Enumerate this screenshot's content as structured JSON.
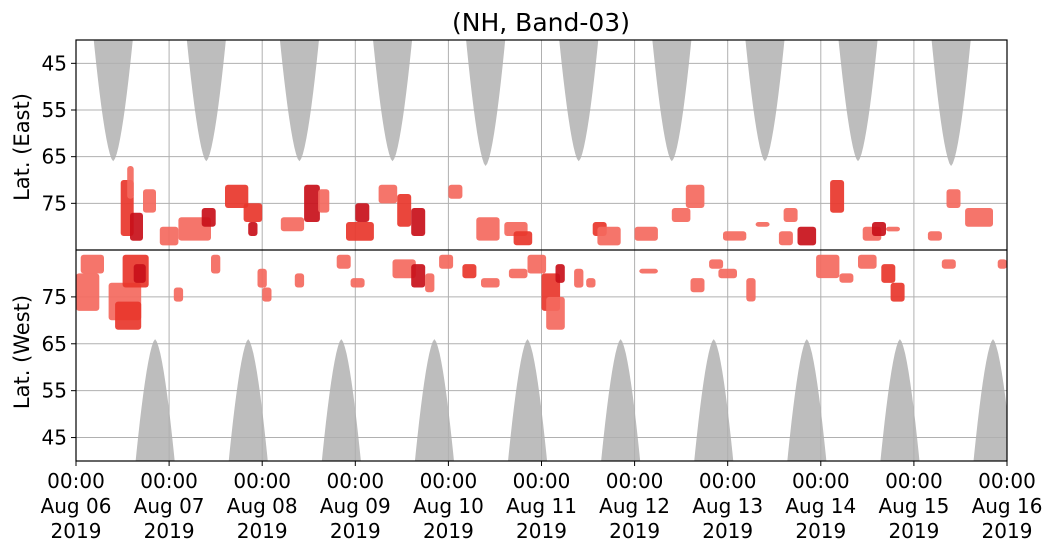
{
  "chart_data": {
    "type": "heatmap",
    "title": "(NH, Band-03)",
    "ylabel_east": "Lat. (East)",
    "ylabel_west": "Lat. (West)",
    "y_ticks_east": [
      45,
      55,
      65,
      75
    ],
    "y_ticks_west": [
      75,
      65,
      55,
      45
    ],
    "y_range_east": [
      85,
      40
    ],
    "y_range_west": [
      85,
      40
    ],
    "x_range_days": [
      0,
      10
    ],
    "x_ticks": [
      {
        "time": "00:00",
        "date": "Aug 06",
        "year": "2019"
      },
      {
        "time": "00:00",
        "date": "Aug 07",
        "year": "2019"
      },
      {
        "time": "00:00",
        "date": "Aug 08",
        "year": "2019"
      },
      {
        "time": "00:00",
        "date": "Aug 09",
        "year": "2019"
      },
      {
        "time": "00:00",
        "date": "Aug 10",
        "year": "2019"
      },
      {
        "time": "00:00",
        "date": "Aug 11",
        "year": "2019"
      },
      {
        "time": "00:00",
        "date": "Aug 12",
        "year": "2019"
      },
      {
        "time": "00:00",
        "date": "Aug 13",
        "year": "2019"
      },
      {
        "time": "00:00",
        "date": "Aug 14",
        "year": "2019"
      },
      {
        "time": "00:00",
        "date": "Aug 15",
        "year": "2019"
      },
      {
        "time": "00:00",
        "date": "Aug 16",
        "year": "2019"
      }
    ],
    "grid": true,
    "colors": {
      "coverage": "#bdbdbd",
      "low": "#f4695e",
      "mid": "#e8362b",
      "high": "#c8101a",
      "divider": "#000000"
    },
    "coverage_gaps": {
      "east": [
        {
          "day": 0.4,
          "half_width_days": 0.22,
          "min_lat": 66
        },
        {
          "day": 1.4,
          "half_width_days": 0.22,
          "min_lat": 66
        },
        {
          "day": 2.4,
          "half_width_days": 0.22,
          "min_lat": 66
        },
        {
          "day": 3.4,
          "half_width_days": 0.22,
          "min_lat": 66
        },
        {
          "day": 4.4,
          "half_width_days": 0.22,
          "min_lat": 67
        },
        {
          "day": 5.4,
          "half_width_days": 0.22,
          "min_lat": 66
        },
        {
          "day": 6.4,
          "half_width_days": 0.22,
          "min_lat": 66
        },
        {
          "day": 7.4,
          "half_width_days": 0.22,
          "min_lat": 66
        },
        {
          "day": 8.4,
          "half_width_days": 0.22,
          "min_lat": 66
        },
        {
          "day": 9.4,
          "half_width_days": 0.22,
          "min_lat": 67
        }
      ],
      "west": [
        {
          "day": 0.85,
          "half_width_days": 0.22,
          "min_lat": 66
        },
        {
          "day": 1.85,
          "half_width_days": 0.22,
          "min_lat": 66
        },
        {
          "day": 2.85,
          "half_width_days": 0.22,
          "min_lat": 66
        },
        {
          "day": 3.85,
          "half_width_days": 0.22,
          "min_lat": 66
        },
        {
          "day": 4.85,
          "half_width_days": 0.22,
          "min_lat": 66
        },
        {
          "day": 5.85,
          "half_width_days": 0.22,
          "min_lat": 66
        },
        {
          "day": 6.85,
          "half_width_days": 0.22,
          "min_lat": 66
        },
        {
          "day": 7.85,
          "half_width_days": 0.22,
          "min_lat": 66
        },
        {
          "day": 8.85,
          "half_width_days": 0.22,
          "min_lat": 66
        },
        {
          "day": 9.85,
          "half_width_days": 0.22,
          "min_lat": 66
        }
      ]
    },
    "detections": {
      "east": [
        {
          "x0": 0.48,
          "x1": 0.62,
          "y0": 82,
          "y1": 70,
          "level": "mid"
        },
        {
          "x0": 0.58,
          "x1": 0.72,
          "y0": 83,
          "y1": 77,
          "level": "high"
        },
        {
          "x0": 0.55,
          "x1": 0.62,
          "y0": 74,
          "y1": 67,
          "level": "low"
        },
        {
          "x0": 0.72,
          "x1": 0.86,
          "y0": 77,
          "y1": 72,
          "level": "low"
        },
        {
          "x0": 0.9,
          "x1": 1.1,
          "y0": 84,
          "y1": 80,
          "level": "low"
        },
        {
          "x0": 1.1,
          "x1": 1.45,
          "y0": 83,
          "y1": 78,
          "level": "low"
        },
        {
          "x0": 1.35,
          "x1": 1.5,
          "y0": 80,
          "y1": 76,
          "level": "high"
        },
        {
          "x0": 1.6,
          "x1": 1.85,
          "y0": 76,
          "y1": 71,
          "level": "mid"
        },
        {
          "x0": 1.8,
          "x1": 2.0,
          "y0": 79,
          "y1": 75,
          "level": "mid"
        },
        {
          "x0": 1.85,
          "x1": 1.95,
          "y0": 82,
          "y1": 79,
          "level": "high"
        },
        {
          "x0": 2.2,
          "x1": 2.45,
          "y0": 81,
          "y1": 78,
          "level": "low"
        },
        {
          "x0": 2.45,
          "x1": 2.62,
          "y0": 79,
          "y1": 71,
          "level": "high"
        },
        {
          "x0": 2.6,
          "x1": 2.72,
          "y0": 77,
          "y1": 72,
          "level": "low"
        },
        {
          "x0": 2.9,
          "x1": 3.2,
          "y0": 83,
          "y1": 79,
          "level": "mid"
        },
        {
          "x0": 3.0,
          "x1": 3.15,
          "y0": 79,
          "y1": 75,
          "level": "high"
        },
        {
          "x0": 3.25,
          "x1": 3.45,
          "y0": 75,
          "y1": 71,
          "level": "low"
        },
        {
          "x0": 3.45,
          "x1": 3.6,
          "y0": 80,
          "y1": 73,
          "level": "mid"
        },
        {
          "x0": 3.6,
          "x1": 3.75,
          "y0": 82,
          "y1": 76,
          "level": "high"
        },
        {
          "x0": 4.0,
          "x1": 4.15,
          "y0": 74,
          "y1": 71,
          "level": "low"
        },
        {
          "x0": 4.3,
          "x1": 4.55,
          "y0": 83,
          "y1": 78,
          "level": "low"
        },
        {
          "x0": 4.6,
          "x1": 4.85,
          "y0": 82,
          "y1": 79,
          "level": "low"
        },
        {
          "x0": 4.7,
          "x1": 4.9,
          "y0": 84,
          "y1": 81,
          "level": "mid"
        },
        {
          "x0": 5.55,
          "x1": 5.7,
          "y0": 82,
          "y1": 79,
          "level": "mid"
        },
        {
          "x0": 5.6,
          "x1": 5.85,
          "y0": 84,
          "y1": 80,
          "level": "low"
        },
        {
          "x0": 6.0,
          "x1": 6.25,
          "y0": 83,
          "y1": 80,
          "level": "low"
        },
        {
          "x0": 6.4,
          "x1": 6.6,
          "y0": 79,
          "y1": 76,
          "level": "low"
        },
        {
          "x0": 6.55,
          "x1": 6.75,
          "y0": 76,
          "y1": 71,
          "level": "low"
        },
        {
          "x0": 6.95,
          "x1": 7.2,
          "y0": 83,
          "y1": 81,
          "level": "low"
        },
        {
          "x0": 7.3,
          "x1": 7.45,
          "y0": 80,
          "y1": 79,
          "level": "low"
        },
        {
          "x0": 7.55,
          "x1": 7.7,
          "y0": 84,
          "y1": 81,
          "level": "low"
        },
        {
          "x0": 7.6,
          "x1": 7.75,
          "y0": 79,
          "y1": 76,
          "level": "low"
        },
        {
          "x0": 7.75,
          "x1": 7.95,
          "y0": 84,
          "y1": 80,
          "level": "high"
        },
        {
          "x0": 8.1,
          "x1": 8.25,
          "y0": 77,
          "y1": 70,
          "level": "mid"
        },
        {
          "x0": 8.45,
          "x1": 8.65,
          "y0": 83,
          "y1": 80,
          "level": "low"
        },
        {
          "x0": 8.55,
          "x1": 8.7,
          "y0": 82,
          "y1": 79,
          "level": "high"
        },
        {
          "x0": 8.7,
          "x1": 8.85,
          "y0": 81,
          "y1": 80,
          "level": "low"
        },
        {
          "x0": 9.15,
          "x1": 9.3,
          "y0": 83,
          "y1": 81,
          "level": "low"
        },
        {
          "x0": 9.35,
          "x1": 9.5,
          "y0": 76,
          "y1": 72,
          "level": "low"
        },
        {
          "x0": 9.55,
          "x1": 9.85,
          "y0": 80,
          "y1": 76,
          "level": "low"
        }
      ],
      "west": [
        {
          "x0": 0.0,
          "x1": 0.25,
          "y0": 80,
          "y1": 72,
          "level": "low"
        },
        {
          "x0": 0.05,
          "x1": 0.3,
          "y0": 84,
          "y1": 80,
          "level": "low"
        },
        {
          "x0": 0.35,
          "x1": 0.7,
          "y0": 78,
          "y1": 70,
          "level": "low"
        },
        {
          "x0": 0.42,
          "x1": 0.7,
          "y0": 74,
          "y1": 68,
          "level": "mid"
        },
        {
          "x0": 0.5,
          "x1": 0.78,
          "y0": 84,
          "y1": 77,
          "level": "mid"
        },
        {
          "x0": 0.62,
          "x1": 0.75,
          "y0": 82,
          "y1": 78,
          "level": "high"
        },
        {
          "x0": 1.05,
          "x1": 1.15,
          "y0": 77,
          "y1": 74,
          "level": "low"
        },
        {
          "x0": 1.45,
          "x1": 1.55,
          "y0": 84,
          "y1": 80,
          "level": "low"
        },
        {
          "x0": 1.95,
          "x1": 2.05,
          "y0": 81,
          "y1": 77,
          "level": "low"
        },
        {
          "x0": 2.0,
          "x1": 2.1,
          "y0": 77,
          "y1": 74,
          "level": "low"
        },
        {
          "x0": 2.35,
          "x1": 2.45,
          "y0": 80,
          "y1": 77,
          "level": "low"
        },
        {
          "x0": 2.95,
          "x1": 3.1,
          "y0": 79,
          "y1": 77,
          "level": "low"
        },
        {
          "x0": 2.8,
          "x1": 2.95,
          "y0": 84,
          "y1": 81,
          "level": "low"
        },
        {
          "x0": 3.4,
          "x1": 3.65,
          "y0": 83,
          "y1": 79,
          "level": "low"
        },
        {
          "x0": 3.6,
          "x1": 3.75,
          "y0": 82,
          "y1": 77,
          "level": "high"
        },
        {
          "x0": 3.75,
          "x1": 3.85,
          "y0": 80,
          "y1": 76,
          "level": "low"
        },
        {
          "x0": 3.9,
          "x1": 4.05,
          "y0": 84,
          "y1": 81,
          "level": "low"
        },
        {
          "x0": 4.15,
          "x1": 4.3,
          "y0": 82,
          "y1": 79,
          "level": "mid"
        },
        {
          "x0": 4.35,
          "x1": 4.55,
          "y0": 79,
          "y1": 77,
          "level": "low"
        },
        {
          "x0": 4.65,
          "x1": 4.85,
          "y0": 81,
          "y1": 79,
          "level": "low"
        },
        {
          "x0": 4.85,
          "x1": 5.05,
          "y0": 84,
          "y1": 80,
          "level": "low"
        },
        {
          "x0": 5.0,
          "x1": 5.2,
          "y0": 80,
          "y1": 72,
          "level": "mid"
        },
        {
          "x0": 5.05,
          "x1": 5.25,
          "y0": 75,
          "y1": 68,
          "level": "low"
        },
        {
          "x0": 5.15,
          "x1": 5.25,
          "y0": 82,
          "y1": 78,
          "level": "high"
        },
        {
          "x0": 5.35,
          "x1": 5.45,
          "y0": 81,
          "y1": 77,
          "level": "low"
        },
        {
          "x0": 5.48,
          "x1": 5.58,
          "y0": 79,
          "y1": 77,
          "level": "low"
        },
        {
          "x0": 6.05,
          "x1": 6.25,
          "y0": 81,
          "y1": 80,
          "level": "low"
        },
        {
          "x0": 6.6,
          "x1": 6.75,
          "y0": 79,
          "y1": 76,
          "level": "low"
        },
        {
          "x0": 6.8,
          "x1": 6.95,
          "y0": 83,
          "y1": 81,
          "level": "low"
        },
        {
          "x0": 6.9,
          "x1": 7.1,
          "y0": 81,
          "y1": 79,
          "level": "low"
        },
        {
          "x0": 7.2,
          "x1": 7.3,
          "y0": 79,
          "y1": 74,
          "level": "low"
        },
        {
          "x0": 7.95,
          "x1": 8.2,
          "y0": 84,
          "y1": 79,
          "level": "low"
        },
        {
          "x0": 8.2,
          "x1": 8.35,
          "y0": 80,
          "y1": 78,
          "level": "low"
        },
        {
          "x0": 8.4,
          "x1": 8.6,
          "y0": 84,
          "y1": 81,
          "level": "low"
        },
        {
          "x0": 8.65,
          "x1": 8.8,
          "y0": 82,
          "y1": 78,
          "level": "mid"
        },
        {
          "x0": 8.75,
          "x1": 8.9,
          "y0": 78,
          "y1": 74,
          "level": "mid"
        },
        {
          "x0": 9.3,
          "x1": 9.45,
          "y0": 83,
          "y1": 81,
          "level": "low"
        },
        {
          "x0": 9.9,
          "x1": 10.0,
          "y0": 83,
          "y1": 81,
          "level": "low"
        }
      ]
    }
  }
}
